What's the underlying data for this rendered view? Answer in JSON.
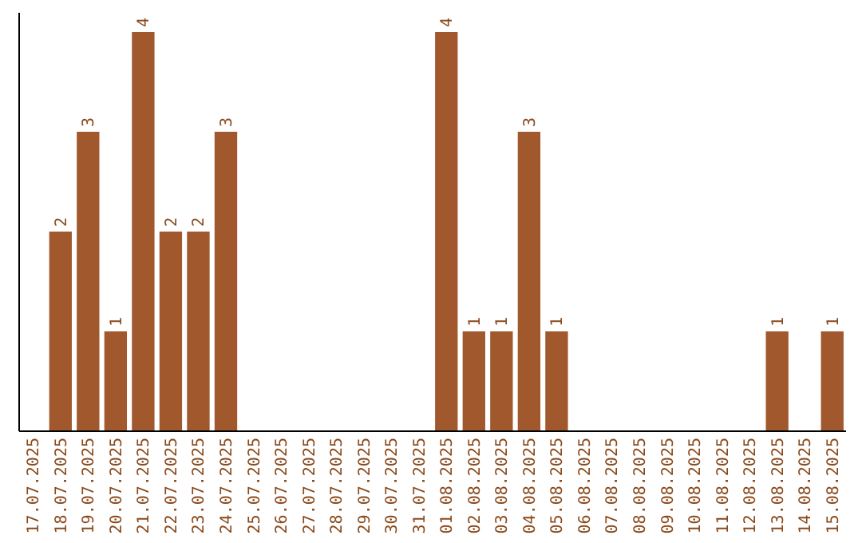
{
  "chart_data": {
    "type": "bar",
    "categories": [
      "17.07.2025",
      "18.07.2025",
      "19.07.2025",
      "20.07.2025",
      "21.07.2025",
      "22.07.2025",
      "23.07.2025",
      "24.07.2025",
      "25.07.2025",
      "26.07.2025",
      "27.07.2025",
      "28.07.2025",
      "29.07.2025",
      "30.07.2025",
      "31.07.2025",
      "01.08.2025",
      "02.08.2025",
      "03.08.2025",
      "04.08.2025",
      "05.08.2025",
      "06.08.2025",
      "07.08.2025",
      "08.08.2025",
      "09.08.2025",
      "10.08.2025",
      "11.08.2025",
      "12.08.2025",
      "13.08.2025",
      "14.08.2025",
      "15.08.2025"
    ],
    "values": [
      0,
      2,
      3,
      1,
      4,
      2,
      2,
      3,
      0,
      0,
      0,
      0,
      0,
      0,
      0,
      4,
      1,
      1,
      3,
      1,
      0,
      0,
      0,
      0,
      0,
      0,
      0,
      1,
      0,
      1
    ],
    "value_labels": [
      null,
      "2",
      "3",
      "1",
      "4",
      "2",
      "2",
      "3",
      null,
      null,
      null,
      null,
      null,
      null,
      null,
      "4",
      "1",
      "1",
      "3",
      "1",
      null,
      null,
      null,
      null,
      null,
      null,
      null,
      "1",
      null,
      "1"
    ],
    "color": "#a0582c",
    "tick_labels": "x"
  }
}
